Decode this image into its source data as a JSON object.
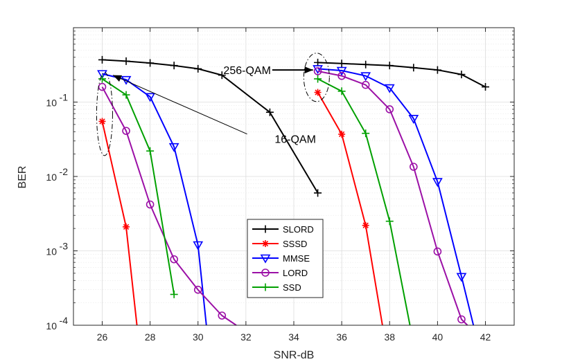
{
  "chart_data": {
    "type": "line",
    "title": "",
    "xlabel": "SNR-dB",
    "ylabel": "BER",
    "xlim": [
      24.8,
      43.2
    ],
    "ylim": [
      0.0001,
      1
    ],
    "yscale": "log",
    "grid": true,
    "x_ticks": [
      26,
      28,
      30,
      32,
      34,
      36,
      38,
      40,
      42
    ],
    "y_ticks": [
      {
        "value": 0.1,
        "base": "10",
        "exp": "-1"
      },
      {
        "value": 0.01,
        "base": "10",
        "exp": "-2"
      },
      {
        "value": 0.001,
        "base": "10",
        "exp": "-3"
      },
      {
        "value": 0.0001,
        "base": "10",
        "exp": "-4"
      }
    ],
    "legend_position": "bottom-center",
    "series": [
      {
        "name": "SLORD",
        "color": "#000000",
        "marker": "plus",
        "x": [
          26,
          27,
          28,
          29,
          30,
          31,
          33,
          35,
          35,
          36,
          37,
          38,
          39,
          40,
          41,
          42
        ],
        "y": [
          0.37,
          0.355,
          0.335,
          0.31,
          0.28,
          0.23,
          0.073,
          0.006,
          0.34,
          0.33,
          0.32,
          0.31,
          0.29,
          0.27,
          0.235,
          0.16
        ],
        "segments": [
          [
            0,
            7
          ],
          [
            8,
            15
          ]
        ]
      },
      {
        "name": "SSSD",
        "color": "#ff0000",
        "marker": "star",
        "x": [
          26,
          27,
          27.45,
          35,
          36,
          37,
          37.7
        ],
        "y": [
          0.055,
          0.0021,
          0.0001,
          0.135,
          0.037,
          0.0022,
          0.0001
        ],
        "segments": [
          [
            0,
            2
          ],
          [
            3,
            6
          ]
        ],
        "markers": [
          0,
          1,
          3,
          4,
          5
        ]
      },
      {
        "name": "MMSE",
        "color": "#0000ff",
        "marker": "triangle-down",
        "x": [
          26,
          27,
          28,
          29,
          30,
          30.35,
          35,
          36,
          37,
          38,
          39,
          40,
          41,
          41.5
        ],
        "y": [
          0.24,
          0.2,
          0.118,
          0.025,
          0.0012,
          0.0001,
          0.28,
          0.265,
          0.225,
          0.155,
          0.06,
          0.0085,
          0.00045,
          0.0001
        ],
        "segments": [
          [
            0,
            5
          ],
          [
            6,
            13
          ]
        ],
        "markers": [
          0,
          1,
          2,
          3,
          4,
          6,
          7,
          8,
          9,
          10,
          11,
          12
        ]
      },
      {
        "name": "LORD",
        "color": "#9b0fa6",
        "marker": "circle",
        "x": [
          26,
          27,
          28,
          29,
          30,
          31,
          31.6,
          35,
          36,
          37,
          38,
          39,
          40,
          41,
          41.25
        ],
        "y": [
          0.16,
          0.041,
          0.0042,
          0.00077,
          0.0003,
          0.000135,
          0.0001,
          0.26,
          0.225,
          0.17,
          0.08,
          0.0135,
          0.00098,
          0.00012,
          0.0001
        ],
        "segments": [
          [
            0,
            6
          ],
          [
            7,
            14
          ]
        ],
        "markers": [
          0,
          1,
          2,
          3,
          4,
          5,
          7,
          8,
          9,
          10,
          11,
          12,
          13
        ]
      },
      {
        "name": "SSD",
        "color": "#00a000",
        "marker": "plus",
        "x": [
          26,
          27,
          28,
          29,
          35,
          36,
          37,
          38,
          38.85
        ],
        "y": [
          0.205,
          0.125,
          0.022,
          0.00026,
          0.205,
          0.14,
          0.038,
          0.0025,
          0.0001
        ],
        "segments": [
          [
            0,
            3
          ],
          [
            4,
            8
          ]
        ],
        "markers": [
          0,
          1,
          2,
          3,
          4,
          5,
          6,
          7
        ]
      }
    ],
    "annotations": [
      {
        "text": "16-QAM",
        "text_x": 33.2,
        "text_y": 0.0323,
        "line_from_x": 32.05,
        "line_from_y": 0.0372,
        "arrow_to_x": 26.45,
        "arrow_to_y": 0.23
      },
      {
        "text": "256-QAM",
        "text_x": 33.6,
        "text_y": 0.27,
        "arrow_from_x": 33.1,
        "arrow_from_y": 0.27,
        "arrow_to_x": 34.8,
        "arrow_to_y": 0.27
      }
    ],
    "ellipses": [
      {
        "cx": 26.1,
        "cy": 0.069,
        "label": "16-QAM group"
      },
      {
        "cx": 34.95,
        "cy": 0.215,
        "label": "256-QAM group"
      }
    ]
  }
}
